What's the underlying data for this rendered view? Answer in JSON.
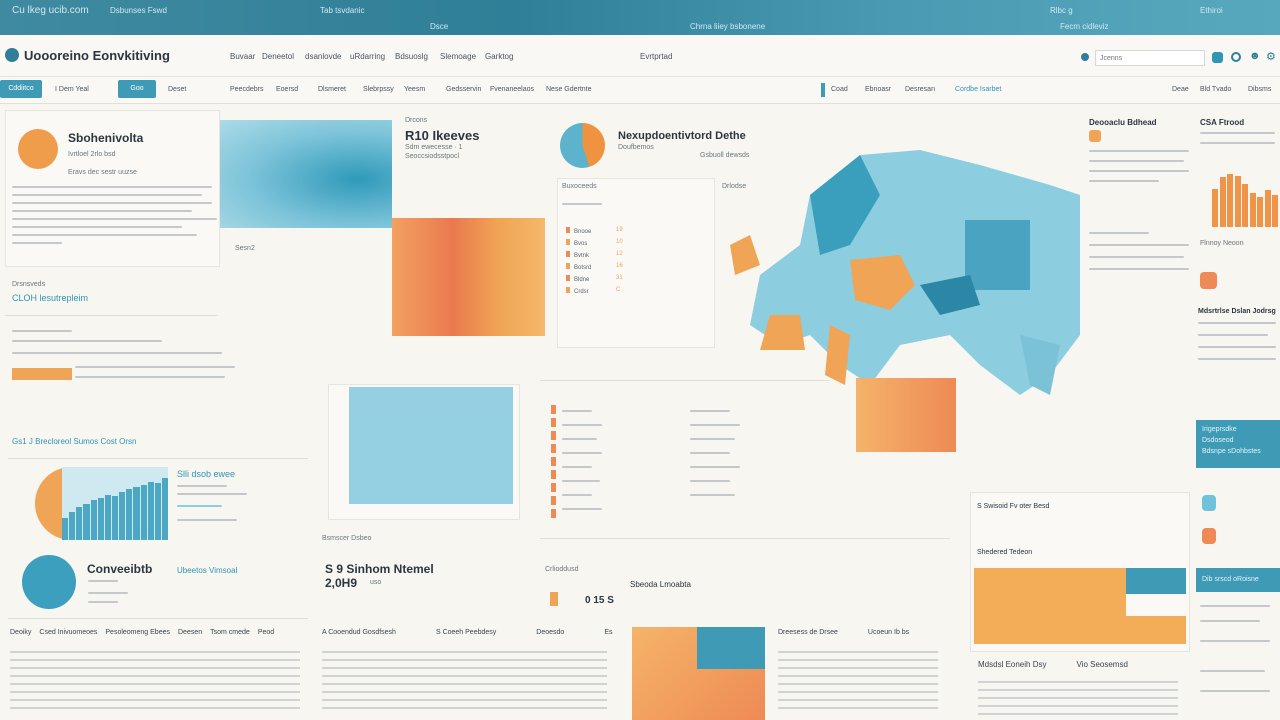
{
  "banner": {
    "items": [
      "Cu lkeg ucib.com",
      "Dsbunses Fswd",
      "Tab tsvdanic",
      "Dsce",
      "Chrna liiey bsbonene",
      "Rlbc g",
      "Fecm cidleviz",
      "Ethiroi"
    ]
  },
  "header": {
    "logo_title": "Uoooreino Eonvkitiving",
    "nav": [
      "Buvaar",
      "Deneetol",
      "dsanlovde",
      "uRdarring",
      "Bdsuoslg",
      "Slemoage",
      "Garktog",
      "Evrtprtad"
    ],
    "search_placeholder": "Jcenns",
    "icons": [
      "notification-icon",
      "sync-icon",
      "user-icon",
      "settings-icon"
    ]
  },
  "toolbar": {
    "active_tab": "Cddiitco",
    "date_label": "I Dem Yeal",
    "go_button": "Goo",
    "filter": "Deset",
    "items": [
      "Peecdebrs",
      "Eoersd",
      "Dlsmeret",
      "Slebrpssy",
      "Yeesm",
      "Gedsservin",
      "Fvenaneelaos",
      "Nese Gdertnte"
    ],
    "right_items": [
      "Coad",
      "Ebnoasr",
      "Desresan",
      "Cordbe Isarbet",
      "Deae",
      "Bld Tvado",
      "Dibsms"
    ]
  },
  "profile": {
    "title": "Sbohenivolta",
    "subtitle": "Ivrtloel 2rlo bsd",
    "meta": "Eravs dec sestr uuzse",
    "footer_label": "Drsnsveds",
    "link": "CLOH lesutrepleim"
  },
  "hero": {
    "caption": "Sesn2",
    "section": "Drcons",
    "title": "R10 Ikeeves",
    "meta1": "Sdm ewecesse · 1",
    "meta2": "Seoccsiodsstpocl"
  },
  "region": {
    "title": "Nexupdoentivtord Dethe",
    "subtitle": "Doufbemos",
    "meta": "Gsbuoll dewsds",
    "list_title": "Buxoceeds",
    "list2": "Drlodse",
    "legend": [
      {
        "label": "Bnooe",
        "value": "19"
      },
      {
        "label": "Bvos",
        "value": "10"
      },
      {
        "label": "Bvtnk",
        "value": "12"
      },
      {
        "label": "Botsrd",
        "value": "16"
      },
      {
        "label": "Bldne",
        "value": "31"
      },
      {
        "label": "Crdsr",
        "value": "C"
      }
    ]
  },
  "side": {
    "card1_title": "Deooaclu Bdhead",
    "card2_title": "CSA Ftrood",
    "card3_title": "Mdsrtrlse Dslan Jodrsg",
    "bar_values": [
      62,
      80,
      85,
      82,
      70,
      55,
      48,
      60,
      52
    ],
    "bar_caption": "Flnnoy Neoon"
  },
  "mid": {
    "filter_label": "Gs1 J Brecloreol Sumos Cost Orsn",
    "kpi_title": "Slli dsob ewee",
    "pie_title": "Conveeibtb",
    "pie_link": "Ubeetos Vimsoal",
    "hist_values": [
      30,
      38,
      45,
      50,
      55,
      58,
      62,
      60,
      66,
      70,
      72,
      75,
      80,
      78,
      85
    ],
    "stat_title": "S 9 Sinhom Ntemel",
    "stat_value": "2,0H9",
    "stat_unit": "uso",
    "count_label": "Crlioddusd",
    "count_value": "0 15 S",
    "table1_title": "Bsmscer Dsbeo",
    "table2_title": "Sbeoda Lmoabta",
    "panel_title": "S Swisoid Fv oter Besd",
    "panel_sub": "Shedered Tedeon",
    "teal_box": [
      "Irigeprsdke",
      "Dsdoseod",
      "Bdsnpe sDohbstes"
    ],
    "teal_box2": "Dib srscd oRoisne"
  },
  "bottom": {
    "headers": [
      "Deoiky",
      "Csed Inivuomeoes",
      "Pesoleomeng Ebees",
      "Deesen",
      "Tsom cmede",
      "Peod"
    ],
    "headers2": [
      "A Cooendud Gosdfsesh",
      "S Coeeh Peebdesy",
      "Deoesdo",
      "Es"
    ],
    "headers3": [
      "Dreesess de Drsee",
      "Ucoeun Ib bs"
    ],
    "headers4": [
      "Mdsdsl Eoneih Dsy",
      "Vio Seosemsd"
    ]
  },
  "colors": {
    "teal": "#2f96b3",
    "orange": "#f0a455",
    "coral": "#ea7a4e",
    "light_blue": "#8ccde0"
  }
}
